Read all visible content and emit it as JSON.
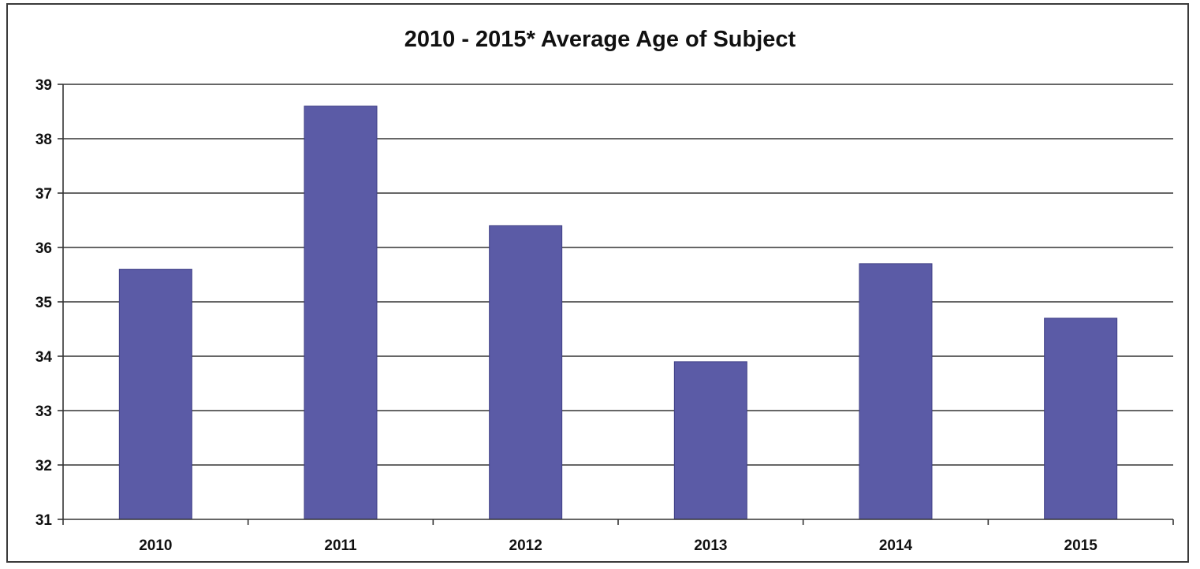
{
  "chart_data": {
    "type": "bar",
    "title": "2010 - 2015* Average Age of Subject",
    "xlabel": "",
    "ylabel": "",
    "categories": [
      "2010",
      "2011",
      "2012",
      "2013",
      "2014",
      "2015"
    ],
    "values": [
      35.6,
      38.6,
      36.4,
      33.9,
      35.7,
      34.7
    ],
    "ylim": [
      31,
      39
    ],
    "yticks": [
      "31",
      "32",
      "33",
      "34",
      "35",
      "36",
      "37",
      "38",
      "39"
    ],
    "grid": true,
    "legend": "none",
    "bar_color": "#5b5ba6",
    "grid_color": "#333333"
  }
}
